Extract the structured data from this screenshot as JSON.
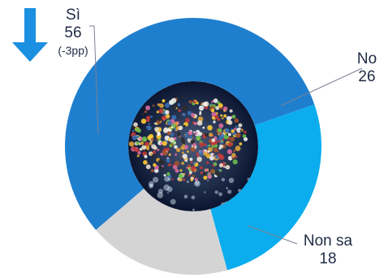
{
  "chart_data": {
    "type": "pie",
    "categories": [
      "Sì",
      "No",
      "Non sa"
    ],
    "values": [
      56,
      26,
      18
    ],
    "colors": [
      "#1F7FCF",
      "#0BADEE",
      "#D4D4D4"
    ],
    "annotations": {
      "si_change": "(-3pp)"
    },
    "trend_indicator": {
      "icon": "arrow-down-icon",
      "color": "#1B8FE0"
    },
    "center_image": "crowded migrant boat photo"
  },
  "labels": {
    "si": {
      "name": "Sì",
      "value": "56",
      "change": "(-3pp)"
    },
    "no": {
      "name": "No",
      "value": "26"
    },
    "nonsa": {
      "name": "Non sa",
      "value": "18"
    }
  }
}
